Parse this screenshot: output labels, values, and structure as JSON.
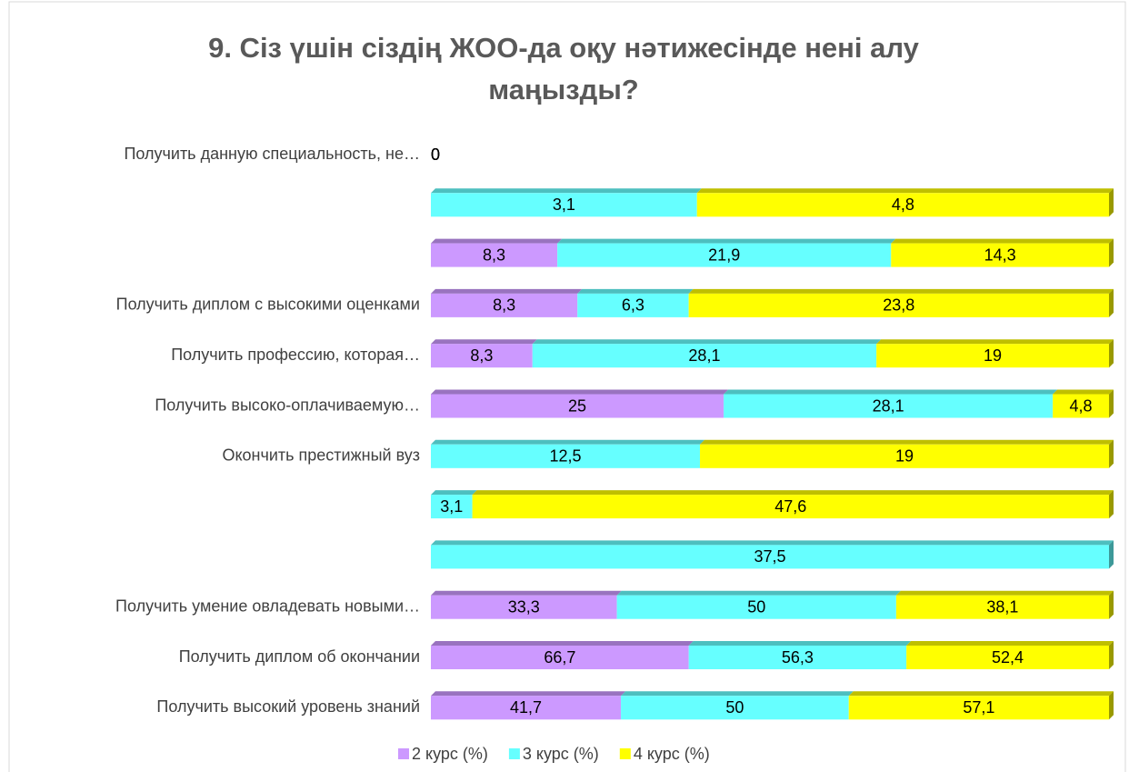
{
  "chart_data": {
    "type": "bar",
    "orientation": "horizontal",
    "stacked": "percent",
    "title": "9. Сіз үшін сіздің ЖОО-да оқу нәтижесінде нені алу маңызды?",
    "categories": [
      "Получить данную специальность, не…",
      null,
      null,
      "Получить диплом с высокими оценками",
      "Получить профессию, которая…",
      "Получить высоко-оплачиваемую…",
      "Окончить престижный вуз",
      null,
      null,
      "Получить умение овладевать новыми…",
      "Получить диплом об окончании",
      "Получить высокий уровень знаний"
    ],
    "series": [
      {
        "name": "2 курс (%)",
        "color": "#cc99ff",
        "values": [
          0,
          0,
          8.3,
          8.3,
          8.3,
          25,
          0,
          0,
          0,
          33.3,
          66.7,
          41.7
        ],
        "value_labels": [
          "0",
          "0",
          "8,3",
          "8,3",
          "8,3",
          "25",
          "0",
          "0",
          "0",
          "33,3",
          "66,7",
          "41,7"
        ]
      },
      {
        "name": "3 курс (%)",
        "color": "#66ffff",
        "values": [
          0,
          3.1,
          21.9,
          6.3,
          28.1,
          28.1,
          12.5,
          3.1,
          37.5,
          50,
          56.3,
          50
        ],
        "value_labels": [
          "0",
          "3,1",
          "21,9",
          "6,3",
          "28,1",
          "28,1",
          "12,5",
          "3,1",
          "37,5",
          "50",
          "56,3",
          "50"
        ]
      },
      {
        "name": "4 курс (%)",
        "color": "#ffff00",
        "values": [
          0,
          4.8,
          14.3,
          23.8,
          19,
          4.8,
          19,
          47.6,
          null,
          38.1,
          52.4,
          57.1
        ],
        "value_labels": [
          "0",
          "4,8",
          "14,3",
          "23,8",
          "19",
          "4,8",
          "19",
          "47,6",
          null,
          "38,1",
          "52,4",
          "57,1"
        ]
      }
    ],
    "legend": "bottom"
  }
}
